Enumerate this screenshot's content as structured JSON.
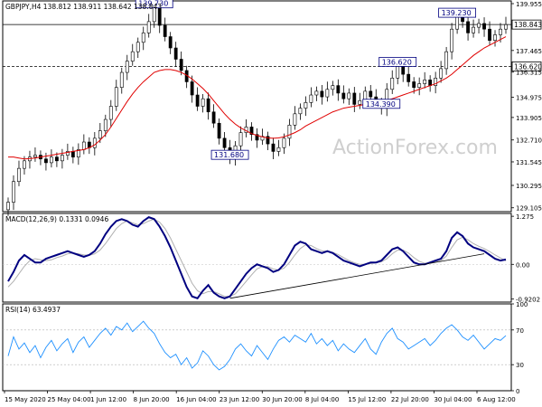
{
  "colors": {
    "background": "#ffffff",
    "frame": "#000000",
    "candle": "#000000",
    "ma": "#e00000",
    "macd": "#000080",
    "signal": "#b0b0b0",
    "rsi": "#1e90ff",
    "annotation": "#000080",
    "watermark": "#cfcfcf"
  },
  "chart_data": [
    {
      "panel": "price",
      "type": "candlestick",
      "header": "GBPJPY,H4  138.812 138.911 138.642 138.843",
      "watermark": "ActionForex.com",
      "x_tick_labels": [
        "15 May 2020",
        "25 May 04:00",
        "1 Jun 12:00",
        "8 Jun 20:00",
        "16 Jun 04:00",
        "23 Jun 12:00",
        "30 Jun 20:00",
        "8 Jul 04:00",
        "15 Jul 12:00",
        "22 Jul 20:00",
        "30 Jul 04:00",
        "6 Aug 12:00"
      ],
      "y_tick_labels": [
        "139.955",
        "137.465",
        "136.315",
        "134.975",
        "133.905",
        "132.710",
        "131.545",
        "130.295",
        "129.105"
      ],
      "ylim": [
        128.9,
        140.1
      ],
      "y_ticks": [
        139.955,
        137.465,
        136.315,
        134.975,
        133.905,
        132.71,
        131.545,
        130.295,
        129.105
      ],
      "last_price": {
        "value": 138.843,
        "label": "138.843"
      },
      "horizontal_lines": [
        {
          "value": 138.843,
          "style": "solid"
        },
        {
          "value": 136.62,
          "style": "dashed",
          "label": "136.620"
        }
      ],
      "closes": [
        129.4,
        130.5,
        131.2,
        131.6,
        131.8,
        131.9,
        131.7,
        131.5,
        131.8,
        131.6,
        131.9,
        132.1,
        131.8,
        132.2,
        132.6,
        132.3,
        132.8,
        133.2,
        133.8,
        134.5,
        135.5,
        136.3,
        136.9,
        137.4,
        137.9,
        138.4,
        139.0,
        139.73,
        138.8,
        138.2,
        137.6,
        137.0,
        136.4,
        135.8,
        135.1,
        134.5,
        134.9,
        134.2,
        133.6,
        132.8,
        132.3,
        131.68,
        132.4,
        133.1,
        133.4,
        133.0,
        132.7,
        132.9,
        132.5,
        132.1,
        132.3,
        132.8,
        133.5,
        134.1,
        134.4,
        134.7,
        135.1,
        135.3,
        135.0,
        135.4,
        135.6,
        135.2,
        134.9,
        135.2,
        134.6,
        134.8,
        135.3,
        135.0,
        134.7,
        134.39,
        135.4,
        136.0,
        136.62,
        136.2,
        135.8,
        135.5,
        135.7,
        135.9,
        135.6,
        136.0,
        136.5,
        137.4,
        138.6,
        139.23,
        139.0,
        138.4,
        138.7,
        138.9,
        138.6,
        138.0,
        138.3,
        138.6,
        138.84
      ],
      "moving_average": [
        131.8,
        131.8,
        131.75,
        131.7,
        131.72,
        131.75,
        131.8,
        131.85,
        131.9,
        131.95,
        132.0,
        132.05,
        132.1,
        132.15,
        132.2,
        132.3,
        132.45,
        132.7,
        133.0,
        133.4,
        133.85,
        134.3,
        134.75,
        135.15,
        135.5,
        135.8,
        136.05,
        136.3,
        136.4,
        136.45,
        136.45,
        136.4,
        136.3,
        136.15,
        135.95,
        135.7,
        135.45,
        135.15,
        134.8,
        134.45,
        134.1,
        133.8,
        133.55,
        133.35,
        133.2,
        133.05,
        132.95,
        132.88,
        132.82,
        132.8,
        132.82,
        132.88,
        132.98,
        133.1,
        133.25,
        133.45,
        133.6,
        133.75,
        133.9,
        134.05,
        134.2,
        134.3,
        134.4,
        134.45,
        134.5,
        134.55,
        134.6,
        134.65,
        134.7,
        134.75,
        134.82,
        134.9,
        135.0,
        135.1,
        135.2,
        135.3,
        135.4,
        135.5,
        135.6,
        135.7,
        135.85,
        136.0,
        136.2,
        136.45,
        136.7,
        136.95,
        137.2,
        137.4,
        137.6,
        137.75,
        137.9,
        138.05,
        138.2
      ],
      "annotations": [
        {
          "label": "139.730",
          "value": 139.73,
          "bar": 27
        },
        {
          "label": "131.680",
          "value": 131.68,
          "bar": 41
        },
        {
          "label": "136.620",
          "value": 136.62,
          "bar": 72
        },
        {
          "label": "134.390",
          "value": 134.39,
          "bar": 69
        },
        {
          "label": "139.230",
          "value": 139.23,
          "bar": 83
        }
      ]
    },
    {
      "panel": "macd",
      "type": "line",
      "header": "MACD(12,26,9) 0.1331 0.0946",
      "y_tick_labels": [
        "1.275",
        "0.00",
        "-0.9202"
      ],
      "ylim": [
        -1.0,
        1.35
      ],
      "y_ticks": [
        1.275,
        0.0,
        -0.9202
      ],
      "series": [
        {
          "name": "MACD",
          "values": [
            -0.45,
            -0.2,
            0.1,
            0.25,
            0.15,
            0.05,
            0.05,
            0.15,
            0.2,
            0.25,
            0.3,
            0.35,
            0.3,
            0.25,
            0.2,
            0.25,
            0.35,
            0.55,
            0.8,
            1.0,
            1.15,
            1.2,
            1.15,
            1.05,
            1.0,
            1.15,
            1.25,
            1.2,
            1.0,
            0.75,
            0.45,
            0.1,
            -0.25,
            -0.6,
            -0.85,
            -0.9,
            -0.7,
            -0.55,
            -0.75,
            -0.85,
            -0.9,
            -0.85,
            -0.65,
            -0.45,
            -0.25,
            -0.1,
            0.0,
            -0.05,
            -0.1,
            -0.2,
            -0.15,
            0.0,
            0.25,
            0.5,
            0.6,
            0.55,
            0.4,
            0.35,
            0.3,
            0.35,
            0.3,
            0.2,
            0.1,
            0.05,
            0.0,
            -0.05,
            0.0,
            0.05,
            0.05,
            0.1,
            0.25,
            0.4,
            0.45,
            0.35,
            0.2,
            0.05,
            0.0,
            0.0,
            0.05,
            0.1,
            0.15,
            0.35,
            0.7,
            0.85,
            0.75,
            0.55,
            0.45,
            0.4,
            0.35,
            0.25,
            0.15,
            0.1,
            0.13
          ]
        },
        {
          "name": "Signal",
          "values": [
            -0.6,
            -0.45,
            -0.25,
            -0.05,
            0.1,
            0.15,
            0.12,
            0.1,
            0.12,
            0.18,
            0.22,
            0.28,
            0.3,
            0.28,
            0.25,
            0.24,
            0.28,
            0.38,
            0.55,
            0.75,
            0.95,
            1.08,
            1.15,
            1.1,
            1.05,
            1.08,
            1.15,
            1.2,
            1.12,
            0.95,
            0.7,
            0.4,
            0.1,
            -0.2,
            -0.5,
            -0.7,
            -0.78,
            -0.72,
            -0.72,
            -0.78,
            -0.85,
            -0.85,
            -0.78,
            -0.62,
            -0.45,
            -0.28,
            -0.12,
            -0.06,
            -0.06,
            -0.12,
            -0.15,
            -0.1,
            0.05,
            0.25,
            0.42,
            0.52,
            0.5,
            0.42,
            0.36,
            0.34,
            0.32,
            0.26,
            0.18,
            0.1,
            0.04,
            0.0,
            0.0,
            0.02,
            0.04,
            0.07,
            0.15,
            0.28,
            0.38,
            0.38,
            0.3,
            0.18,
            0.08,
            0.03,
            0.03,
            0.06,
            0.1,
            0.22,
            0.45,
            0.65,
            0.72,
            0.65,
            0.55,
            0.48,
            0.42,
            0.34,
            0.25,
            0.17,
            0.09
          ]
        }
      ],
      "trendline": {
        "from": {
          "bar": 41,
          "value": -0.9
        },
        "to": {
          "bar": 88,
          "value": 0.28
        }
      }
    },
    {
      "panel": "rsi",
      "type": "line",
      "header": "RSI(14) 63.4937",
      "y_tick_labels": [
        "100",
        "70",
        "30",
        "0"
      ],
      "ylim": [
        0,
        100
      ],
      "y_ticks": [
        100,
        70,
        30,
        0
      ],
      "levels": [
        70,
        30
      ],
      "series": [
        {
          "name": "RSI",
          "values": [
            40,
            62,
            48,
            55,
            44,
            52,
            38,
            50,
            58,
            46,
            54,
            60,
            44,
            56,
            62,
            50,
            58,
            66,
            72,
            64,
            74,
            70,
            78,
            68,
            74,
            80,
            72,
            66,
            54,
            44,
            38,
            42,
            30,
            38,
            26,
            32,
            46,
            40,
            30,
            24,
            28,
            36,
            48,
            54,
            46,
            40,
            52,
            44,
            36,
            48,
            58,
            62,
            56,
            64,
            60,
            56,
            66,
            54,
            60,
            52,
            58,
            46,
            54,
            48,
            44,
            52,
            60,
            48,
            42,
            56,
            66,
            72,
            60,
            56,
            48,
            52,
            56,
            60,
            52,
            58,
            66,
            72,
            76,
            70,
            62,
            58,
            64,
            56,
            48,
            54,
            60,
            58,
            63.49
          ]
        }
      ]
    }
  ]
}
